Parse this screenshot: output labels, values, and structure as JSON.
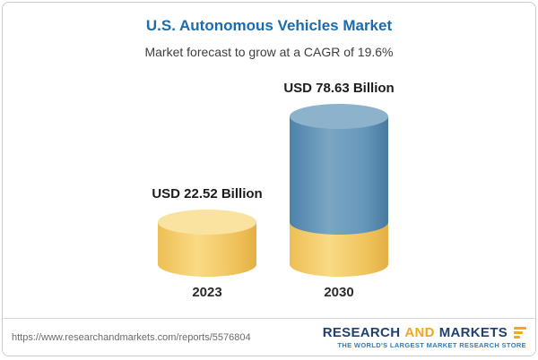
{
  "header": {
    "title": "U.S. Autonomous Vehicles Market",
    "subtitle": "Market forecast to grow at a CAGR of 19.6%"
  },
  "chart_data": {
    "type": "bar",
    "subtype": "3d-cylinder",
    "title": "U.S. Autonomous Vehicles Market",
    "subtitle": "Market forecast to grow at a CAGR of 19.6%",
    "cagr_percent": 19.6,
    "categories": [
      "2023",
      "2030"
    ],
    "values": [
      22.52,
      78.63
    ],
    "unit": "USD Billion",
    "value_labels": [
      "USD 22.52 Billion",
      "USD 78.63 Billion"
    ],
    "stacked_note": "2030 bar shows base segment equal to 2023 value in yellow with growth segment in blue",
    "ylim": [
      0,
      80
    ],
    "grid": false,
    "legend": false,
    "colors": {
      "bar_2023": "#f5cf6e",
      "bar_2023_top": "#fae3a0",
      "bar_2030_growth": "#5e92b8",
      "bar_2030_top": "#8db2cb",
      "title_text": "#1b6bad"
    }
  },
  "footer": {
    "url": "https://www.researchandmarkets.com/reports/5576804",
    "logo": {
      "word1": "RESEARCH",
      "word2": "AND",
      "word3": "MARKETS",
      "tagline": "THE WORLD'S LARGEST MARKET RESEARCH STORE"
    }
  }
}
